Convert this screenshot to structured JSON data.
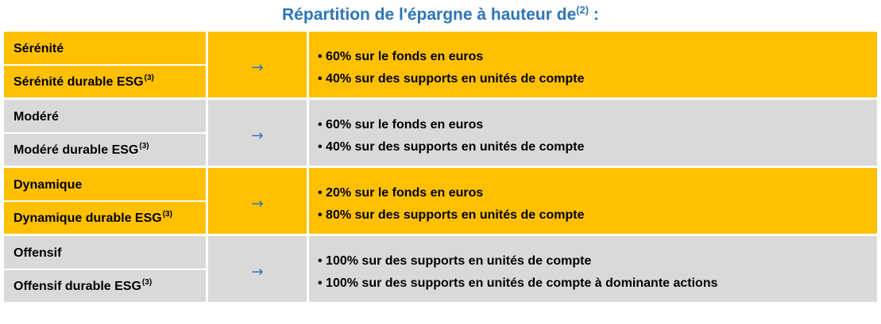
{
  "title": {
    "text": "Répartition de l'épargne à hauteur de",
    "sup": "(2)",
    "suffix": " :"
  },
  "arrow": "→",
  "colors": {
    "title": "#2E75B6",
    "arrow": "#2E75B6",
    "highlight": "#FFC000",
    "neutral": "#D9D9D9"
  },
  "profiles": [
    {
      "background": "#FFC000",
      "options": [
        {
          "label": "Sérénité"
        },
        {
          "label": "Sérénité durable ESG",
          "sup": "(3)"
        }
      ],
      "allocation": [
        "• 60% sur le fonds en euros",
        "• 40% sur des supports en unités de compte"
      ]
    },
    {
      "background": "#D9D9D9",
      "options": [
        {
          "label": "Modéré"
        },
        {
          "label": "Modéré durable ESG",
          "sup": "(3)"
        }
      ],
      "allocation": [
        "• 60% sur le fonds en euros",
        "• 40% sur des supports en unités de compte"
      ]
    },
    {
      "background": "#FFC000",
      "options": [
        {
          "label": "Dynamique"
        },
        {
          "label": "Dynamique durable ESG",
          "sup": "(3)"
        }
      ],
      "allocation": [
        "• 20% sur le fonds en euros",
        "• 80% sur des supports en unités de compte"
      ]
    },
    {
      "background": "#D9D9D9",
      "options": [
        {
          "label": "Offensif"
        },
        {
          "label": "Offensif durable ESG",
          "sup": "(3)"
        }
      ],
      "allocation": [
        "• 100% sur des supports en unités de compte",
        "• 100% sur des supports en unités de compte à dominante actions"
      ]
    }
  ]
}
